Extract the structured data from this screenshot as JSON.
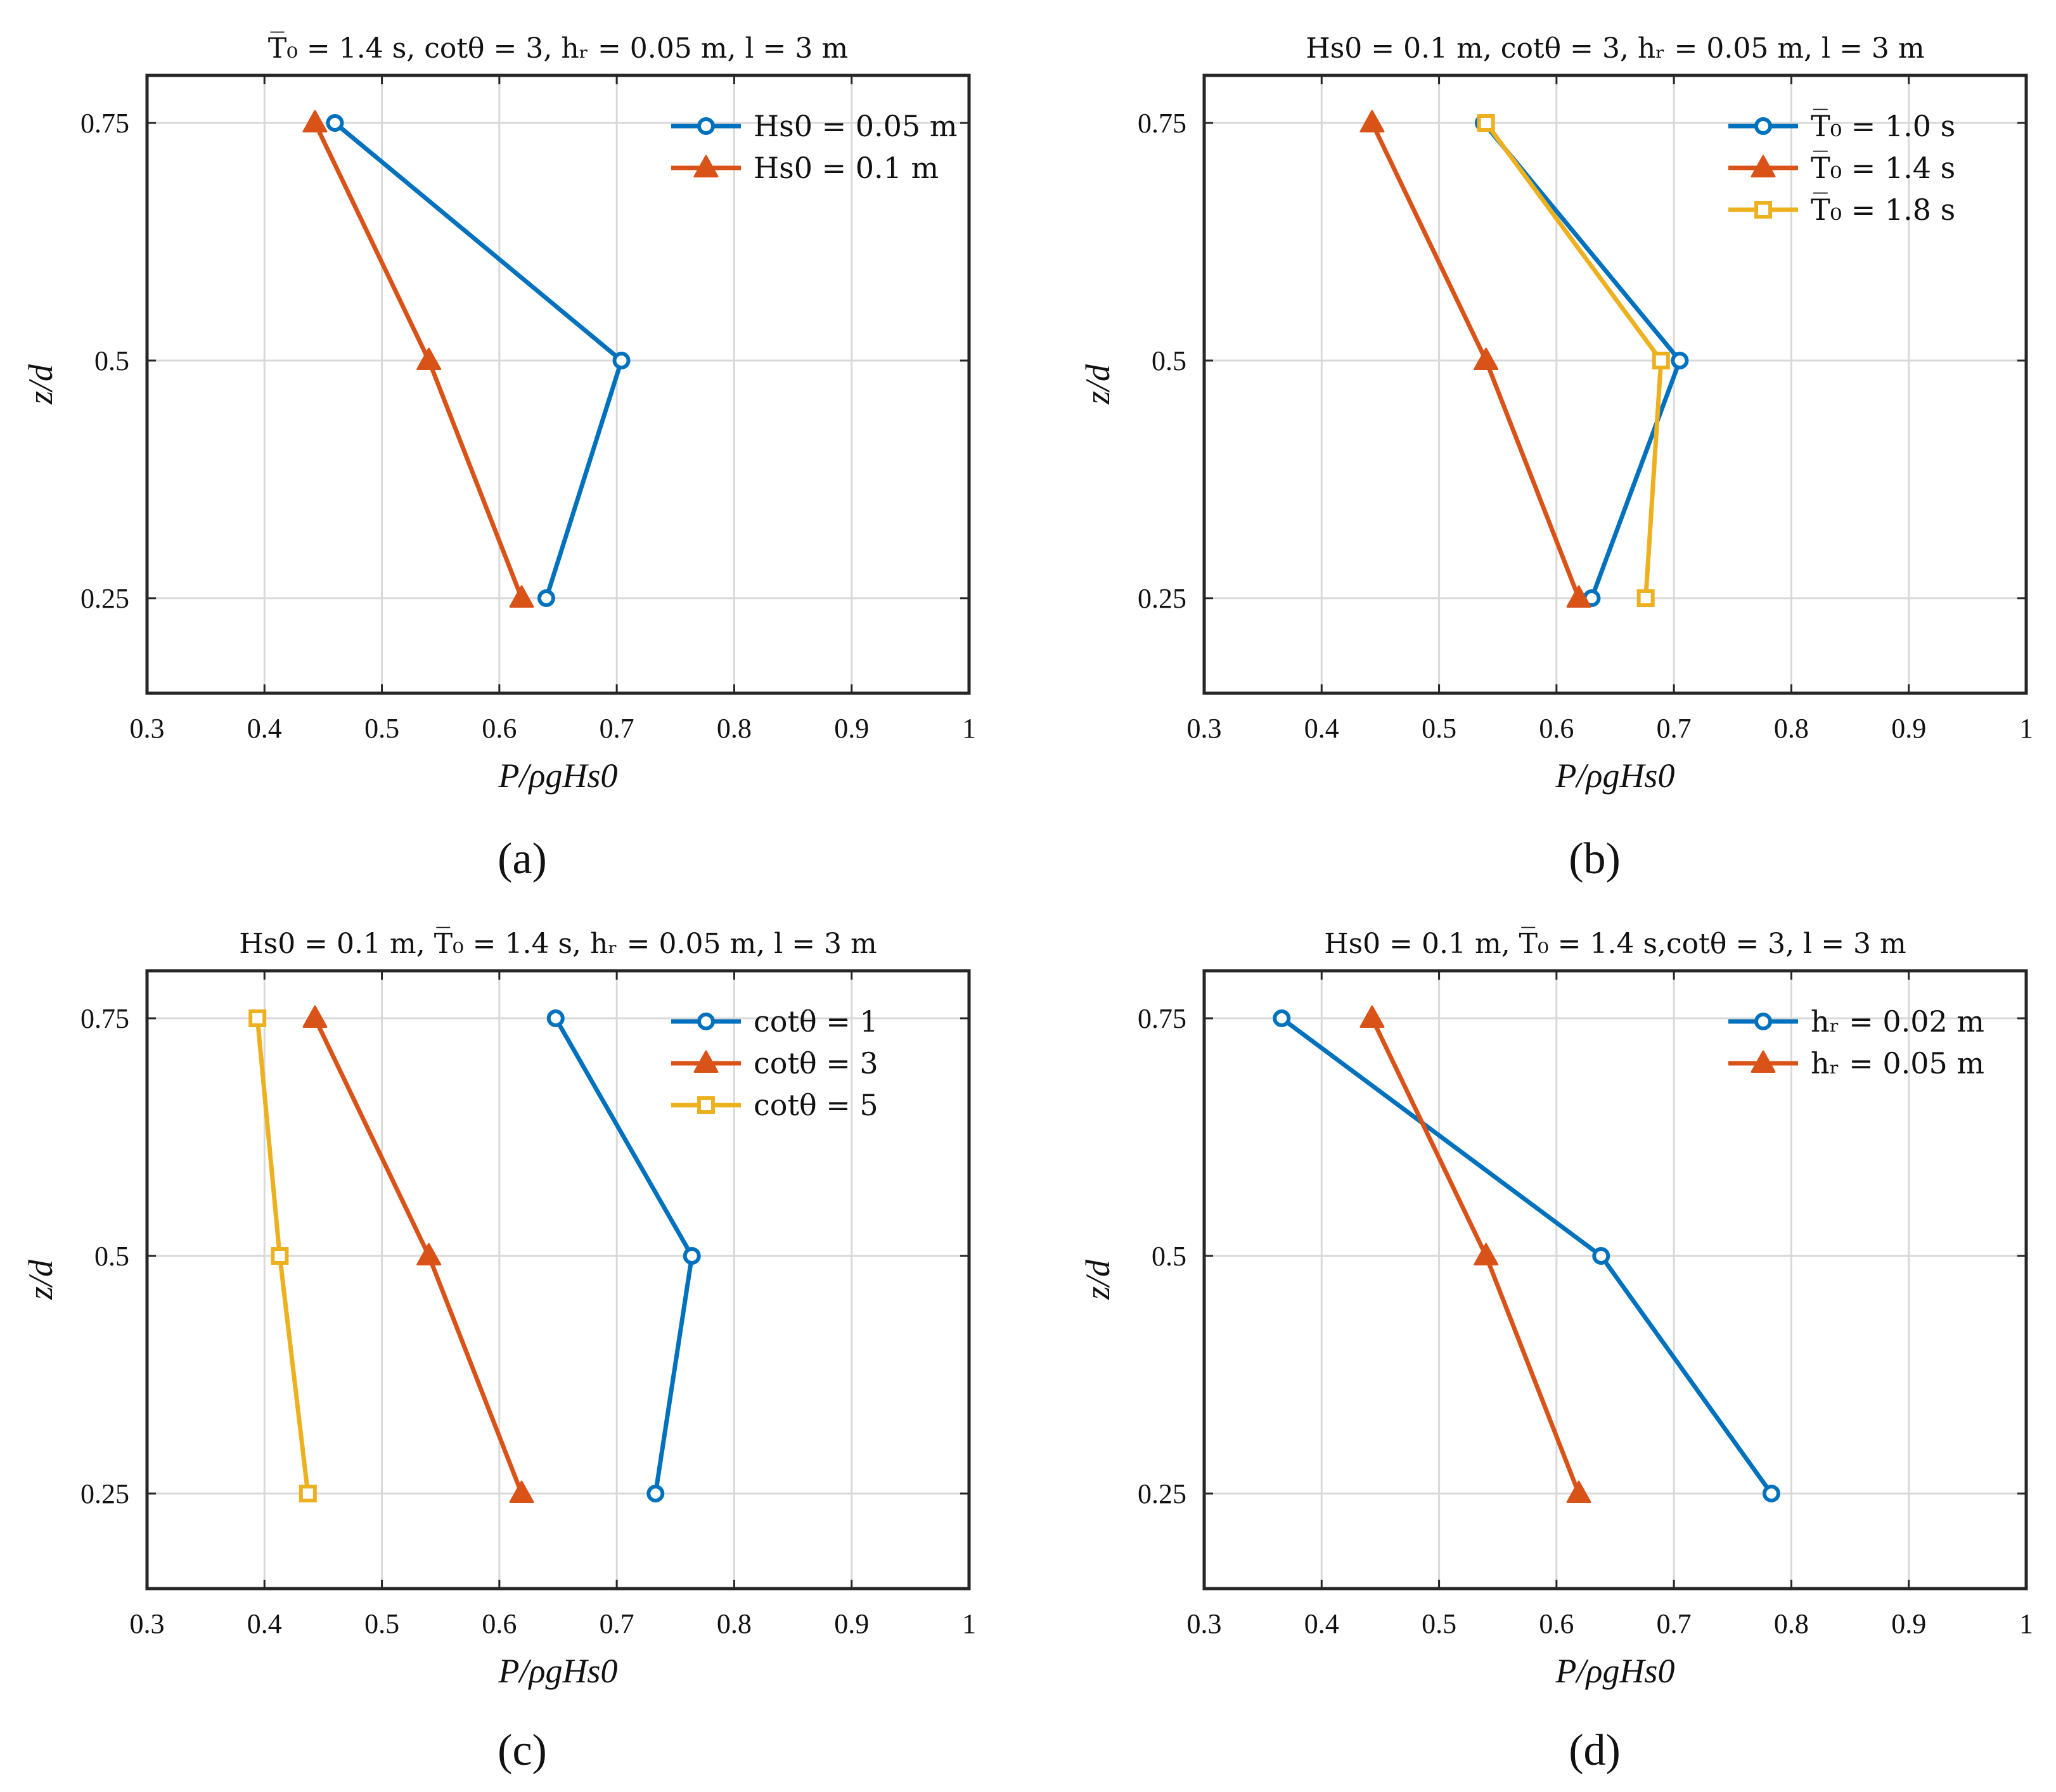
{
  "figure": {
    "panel_labels": [
      "(a)",
      "(b)",
      "(c)",
      "(d)"
    ]
  },
  "colors": {
    "blue": "#0072BD",
    "orange": "#D95319",
    "yellow": "#EDB120",
    "grid": "#d9d9d9",
    "axis": "#262626"
  },
  "chart_data": [
    {
      "type": "line",
      "panel": "(a)",
      "title": "T̅₀ = 1.4 s, cotθ = 3, hᵣ = 0.05 m, l = 3 m",
      "xlabel": "P/ρgHs0",
      "ylabel": "z/d",
      "xlim": [
        0.3,
        1.0
      ],
      "ylim": [
        0.15,
        0.8
      ],
      "xticks": [
        "0.3",
        "0.4",
        "0.5",
        "0.6",
        "0.7",
        "0.8",
        "0.9",
        "1"
      ],
      "yticks": [
        "0.25",
        "0.5",
        "0.75"
      ],
      "legend_position": "top-right",
      "series": [
        {
          "name": "Hs0 = 0.05 m",
          "color": "blue",
          "marker": "circle",
          "x": [
            0.46,
            0.704,
            0.64
          ],
          "y": [
            0.75,
            0.5,
            0.25
          ]
        },
        {
          "name": "Hs0 = 0.1 m",
          "color": "orange",
          "marker": "triangle",
          "x": [
            0.443,
            0.54,
            0.619
          ],
          "y": [
            0.75,
            0.5,
            0.25
          ]
        }
      ]
    },
    {
      "type": "line",
      "panel": "(b)",
      "title": "Hs0 = 0.1 m, cotθ = 3, hᵣ = 0.05 m, l = 3 m",
      "xlabel": "P/ρgHs0",
      "ylabel": "z/d",
      "xlim": [
        0.3,
        1.0
      ],
      "ylim": [
        0.15,
        0.8
      ],
      "xticks": [
        "0.3",
        "0.4",
        "0.5",
        "0.6",
        "0.7",
        "0.8",
        "0.9",
        "1"
      ],
      "yticks": [
        "0.25",
        "0.5",
        "0.75"
      ],
      "legend_position": "top-right",
      "series": [
        {
          "name": "T̅₀ = 1.0 s",
          "color": "blue",
          "marker": "circle",
          "x": [
            0.538,
            0.705,
            0.63
          ],
          "y": [
            0.75,
            0.5,
            0.25
          ]
        },
        {
          "name": "T̅₀ = 1.4 s",
          "color": "orange",
          "marker": "triangle",
          "x": [
            0.443,
            0.54,
            0.619
          ],
          "y": [
            0.75,
            0.5,
            0.25
          ]
        },
        {
          "name": "T̅₀ = 1.8 s",
          "color": "yellow",
          "marker": "square",
          "x": [
            0.54,
            0.689,
            0.676
          ],
          "y": [
            0.75,
            0.5,
            0.25
          ]
        }
      ]
    },
    {
      "type": "line",
      "panel": "(c)",
      "title": "Hs0 = 0.1 m, T̅₀ = 1.4 s, hᵣ = 0.05 m, l = 3 m",
      "xlabel": "P/ρgHs0",
      "ylabel": "z/d",
      "xlim": [
        0.3,
        1.0
      ],
      "ylim": [
        0.15,
        0.8
      ],
      "xticks": [
        "0.3",
        "0.4",
        "0.5",
        "0.6",
        "0.7",
        "0.8",
        "0.9",
        "1"
      ],
      "yticks": [
        "0.25",
        "0.5",
        "0.75"
      ],
      "legend_position": "top-right",
      "series": [
        {
          "name": "cotθ = 1",
          "color": "blue",
          "marker": "circle",
          "x": [
            0.648,
            0.764,
            0.733
          ],
          "y": [
            0.75,
            0.5,
            0.25
          ]
        },
        {
          "name": "cotθ = 3",
          "color": "orange",
          "marker": "triangle",
          "x": [
            0.443,
            0.54,
            0.619
          ],
          "y": [
            0.75,
            0.5,
            0.25
          ]
        },
        {
          "name": "cotθ = 5",
          "color": "yellow",
          "marker": "square",
          "x": [
            0.394,
            0.413,
            0.437
          ],
          "y": [
            0.75,
            0.5,
            0.25
          ]
        }
      ]
    },
    {
      "type": "line",
      "panel": "(d)",
      "title": "Hs0 = 0.1 m, T̅₀ = 1.4 s,cotθ = 3, l = 3 m",
      "xlabel": "P/ρgHs0",
      "ylabel": "z/d",
      "xlim": [
        0.3,
        1.0
      ],
      "ylim": [
        0.15,
        0.8
      ],
      "xticks": [
        "0.3",
        "0.4",
        "0.5",
        "0.6",
        "0.7",
        "0.8",
        "0.9",
        "1"
      ],
      "yticks": [
        "0.25",
        "0.5",
        "0.75"
      ],
      "legend_position": "top-right",
      "series": [
        {
          "name": "hᵣ = 0.02 m",
          "color": "blue",
          "marker": "circle",
          "x": [
            0.366,
            0.638,
            0.783
          ],
          "y": [
            0.75,
            0.5,
            0.25
          ]
        },
        {
          "name": "hᵣ = 0.05 m",
          "color": "orange",
          "marker": "triangle",
          "x": [
            0.443,
            0.54,
            0.619
          ],
          "y": [
            0.75,
            0.5,
            0.25
          ]
        }
      ]
    }
  ]
}
